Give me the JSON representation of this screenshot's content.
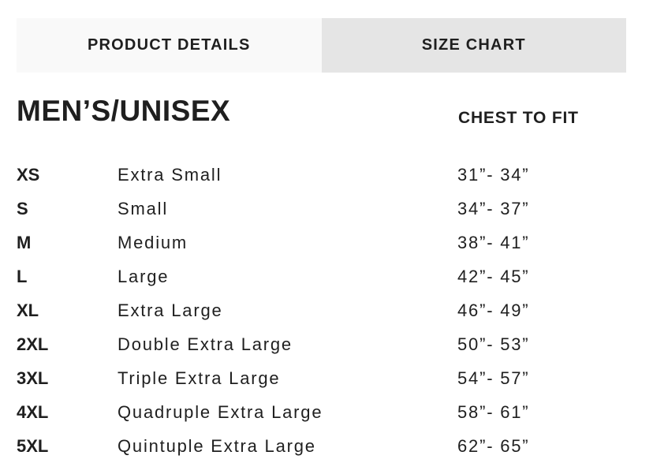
{
  "tabs": [
    {
      "label": "PRODUCT DETAILS",
      "active": false
    },
    {
      "label": "SIZE CHART",
      "active": true
    }
  ],
  "title": "MEN’S/UNISEX",
  "column_header": "CHEST TO FIT",
  "sizes": [
    {
      "code": "XS",
      "name": "Extra Small",
      "chest": "31”- 34”"
    },
    {
      "code": "S",
      "name": "Small",
      "chest": "34”- 37”"
    },
    {
      "code": "M",
      "name": "Medium",
      "chest": "38”- 41”"
    },
    {
      "code": "L",
      "name": "Large",
      "chest": "42”- 45”"
    },
    {
      "code": "XL",
      "name": "Extra Large",
      "chest": "46”- 49”"
    },
    {
      "code": "2XL",
      "name": "Double Extra Large",
      "chest": "50”- 53”"
    },
    {
      "code": "3XL",
      "name": "Triple Extra Large",
      "chest": "54”- 57”"
    },
    {
      "code": "4XL",
      "name": "Quadruple Extra Large",
      "chest": "58”- 61”"
    },
    {
      "code": "5XL",
      "name": "Quintuple Extra Large",
      "chest": "62”- 65”"
    }
  ]
}
